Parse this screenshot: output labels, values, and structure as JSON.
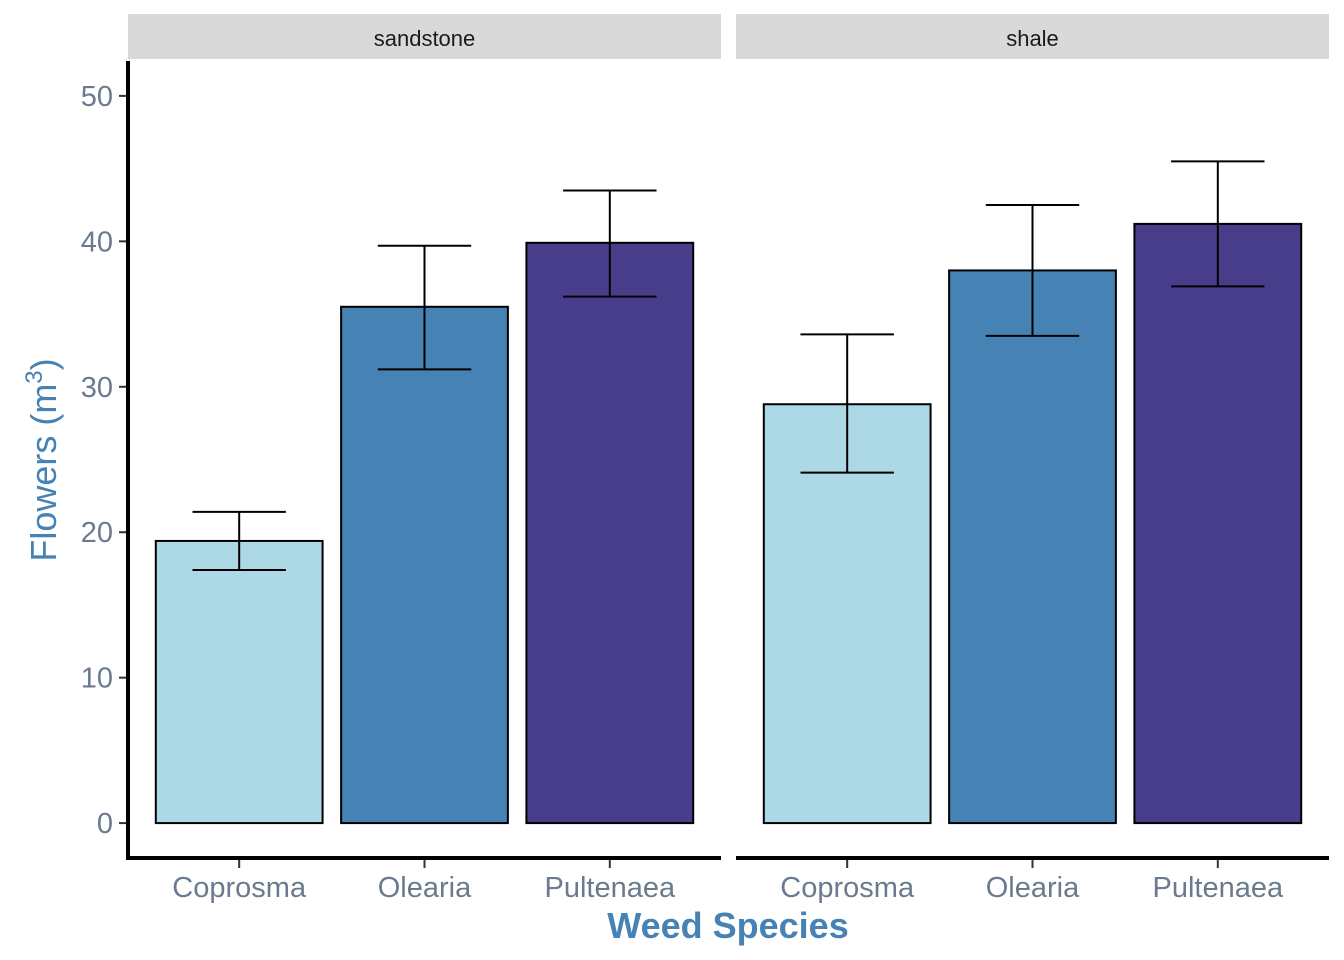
{
  "chart_data": {
    "type": "bar",
    "facets": [
      "sandstone",
      "shale"
    ],
    "categories": [
      "Coprosma",
      "Olearia",
      "Pultenaea"
    ],
    "panels": [
      {
        "facet": "sandstone",
        "values": [
          19.4,
          35.5,
          39.9
        ],
        "error_low": [
          17.4,
          31.2,
          36.2
        ],
        "error_high": [
          21.4,
          39.7,
          43.5
        ]
      },
      {
        "facet": "shale",
        "values": [
          28.8,
          38.0,
          41.2
        ],
        "error_low": [
          24.1,
          33.5,
          36.9
        ],
        "error_high": [
          33.6,
          42.5,
          45.5
        ]
      }
    ],
    "fill_colors": [
      "#add8e6",
      "#4682b4",
      "#483d8b"
    ],
    "xlabel": "Weed Species",
    "ylabel": "Flowers (m",
    "ylabel_superscript": "3",
    "ylabel_suffix": ")",
    "y_ticks": [
      0,
      10,
      20,
      30,
      40,
      50
    ],
    "ylim": [
      -2.4,
      52.4
    ],
    "grid": false,
    "legend": "none"
  }
}
